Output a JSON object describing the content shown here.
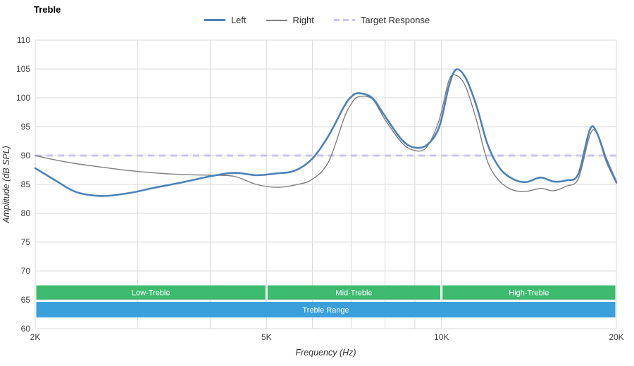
{
  "chart_data": {
    "type": "line",
    "title": "Treble",
    "xlabel": "Frequency (Hz)",
    "ylabel": "Amplitude (dB SPL)",
    "x_scale": "log",
    "xlim": [
      2000,
      20000
    ],
    "ylim": [
      60,
      110
    ],
    "grid": true,
    "legend_position": "top-center",
    "y_ticks": [
      60,
      65,
      70,
      75,
      80,
      85,
      90,
      95,
      100,
      105,
      110
    ],
    "x_ticks": [
      {
        "khz": 2,
        "label": "2K"
      },
      {
        "khz": 5,
        "label": "5K"
      },
      {
        "khz": 10,
        "label": "10K"
      },
      {
        "khz": 20,
        "label": "20K"
      }
    ],
    "x_gridlines_khz": [
      2,
      3,
      4,
      5,
      6,
      7,
      8,
      9,
      10,
      20
    ],
    "x_khz": [
      2.0,
      2.15,
      2.35,
      2.6,
      2.9,
      3.2,
      3.6,
      4.0,
      4.4,
      4.8,
      5.2,
      5.6,
      6.0,
      6.4,
      6.8,
      7.0,
      7.2,
      7.6,
      8.0,
      8.5,
      8.9,
      9.4,
      9.9,
      10.3,
      10.6,
      11.0,
      11.5,
      12.0,
      12.6,
      13.3,
      14.0,
      14.8,
      15.6,
      16.4,
      17.2,
      18.0,
      18.5,
      19.2,
      20.0
    ],
    "series": [
      {
        "name": "Left",
        "color": "#4d82b8",
        "width": 2.6,
        "values": [
          87.8,
          85.9,
          83.7,
          83.0,
          83.5,
          84.4,
          85.4,
          86.4,
          87.0,
          86.6,
          86.9,
          87.4,
          89.5,
          93.5,
          98.5,
          100.2,
          100.8,
          100.0,
          96.8,
          93.0,
          91.5,
          91.7,
          94.8,
          102.0,
          104.9,
          103.5,
          98.5,
          92.0,
          87.8,
          85.9,
          85.4,
          86.2,
          85.5,
          85.7,
          86.8,
          94.5,
          94.0,
          89.5,
          85.4
        ]
      },
      {
        "name": "Right",
        "color": "#7e7e7e",
        "width": 1.4,
        "values": [
          90.0,
          89.3,
          88.6,
          88.0,
          87.4,
          87.0,
          86.7,
          86.6,
          86.4,
          85.0,
          84.5,
          84.9,
          85.9,
          89.0,
          96.5,
          99.0,
          100.2,
          99.8,
          96.2,
          92.5,
          91.0,
          91.3,
          96.0,
          103.0,
          103.9,
          102.0,
          96.0,
          89.0,
          85.5,
          84.0,
          83.8,
          84.3,
          83.9,
          84.7,
          86.0,
          93.5,
          93.9,
          89.0,
          85.2
        ]
      }
    ],
    "target": {
      "name": "Target Response",
      "value": 90,
      "color": "#c9c5f3",
      "width": 3,
      "dash": "9,7"
    },
    "bands": [
      {
        "label": "Low-Treble",
        "from_khz": 2,
        "to_khz": 5,
        "row": 0,
        "color": "#3dbb6e"
      },
      {
        "label": "Mid-Treble",
        "from_khz": 5,
        "to_khz": 10,
        "row": 0,
        "color": "#3dbb6e"
      },
      {
        "label": "High-Treble",
        "from_khz": 10,
        "to_khz": 20,
        "row": 0,
        "color": "#3dbb6e"
      },
      {
        "label": "Treble Range",
        "from_khz": 2,
        "to_khz": 20,
        "row": 1,
        "color": "#3aa0dc"
      }
    ],
    "band_rows": [
      {
        "top_db": 67.5,
        "bottom_db": 65.05
      },
      {
        "top_db": 64.65,
        "bottom_db": 61.95
      }
    ],
    "colors": {
      "grid": "#d9d9d9",
      "tick_text": "#3f3f3f",
      "axis_text": "#333333",
      "band_text": "#ffffff",
      "background": "#ffffff"
    }
  }
}
